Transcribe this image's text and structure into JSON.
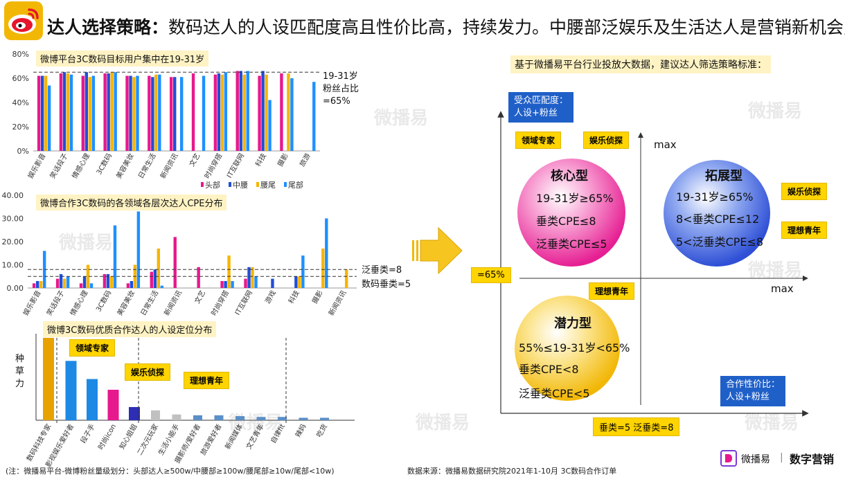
{
  "header": {
    "title_strong": "达人选择策略：",
    "title_rest": "数码达人的人设匹配度高且性价比高，持续发力。中腰部泛娱乐及生活达人是营销新机会点。"
  },
  "watermark": "微播易",
  "right_panel": {
    "title": "基于微播易平台行业投放大数据，建议达人筛选策略标准：",
    "y_axis_box": "受众匹配度：\n人设+粉丝",
    "x_axis_box": "合作性价比：\n人设+粉丝",
    "y_max": "max",
    "x_max": "max",
    "y_threshold_tag": "=65%",
    "x_threshold_tag": "垂类=5  泛垂类=8",
    "quadrants": [
      {
        "name": "核心型",
        "lines": [
          "19-31岁≥65%",
          "垂类CPE≤8",
          "泛垂类CPE≤5"
        ],
        "color": "#ee3aa4"
      },
      {
        "name": "拓展型",
        "lines": [
          "19-31岁≥65%",
          "8<垂类CPE≤12",
          "5<泛垂类CPE≤8"
        ],
        "color": "#4a6fe0"
      },
      {
        "name": "潜力型",
        "lines": [
          "55%≤19-31岁<65%",
          "垂类CPE<8",
          "泛垂类CPE<5"
        ],
        "color": "#f7c520"
      }
    ],
    "tags": {
      "domain_expert": "领域专家",
      "ent_detective_left": "娱乐侦探",
      "ent_detective_right": "娱乐侦探",
      "ideal_youth_right": "理想青年",
      "ideal_youth_bottom": "理想青年"
    }
  },
  "chart_data": [
    {
      "type": "bar",
      "title": "微博平台3C数码目标用户集中在19-31岁",
      "categories": [
        "娱乐影音",
        "笑话段子",
        "情感心理",
        "3C数码",
        "美容美妆",
        "日常生活",
        "新闻资讯",
        "文艺",
        "时尚穿搭",
        "IT互联网",
        "科技",
        "摄影",
        "旅游"
      ],
      "ylim": [
        0,
        80
      ],
      "yticks": [
        "0%",
        "20%",
        "40%",
        "60%",
        "80%"
      ],
      "series": [
        {
          "name": "头部",
          "color": "#e6198d",
          "values": [
            62,
            64,
            62,
            64,
            62,
            62,
            61,
            64,
            63,
            66,
            62,
            64,
            null
          ]
        },
        {
          "name": "中腰",
          "color": "#1f4fd8",
          "values": [
            62,
            65,
            65,
            64,
            62,
            61,
            61,
            null,
            64,
            66,
            66,
            null,
            null
          ]
        },
        {
          "name": "腰尾",
          "color": "#f7b500",
          "values": [
            62,
            64,
            61,
            65,
            61,
            63,
            null,
            null,
            63,
            63,
            63,
            64,
            null
          ]
        },
        {
          "name": "尾部",
          "color": "#1e90ff",
          "values": [
            54,
            63,
            62,
            65,
            62,
            63,
            61,
            62,
            65,
            66,
            42,
            60,
            57
          ]
        }
      ],
      "reference_line": 65,
      "reference_label": [
        "19-31岁",
        "粉丝占比",
        "=65%"
      ]
    },
    {
      "type": "bar",
      "title": "微博合作3C数码的各领域各层次达人CPE分布",
      "categories": [
        "娱乐影音",
        "笑话段子",
        "情感心理",
        "3C数码",
        "美容美妆",
        "日常生活",
        "新闻资讯",
        "文艺",
        "时尚穿搭",
        "IT互联网",
        "游戏",
        "科技",
        "摄影",
        "新闻资讯"
      ],
      "ylim": [
        0,
        40
      ],
      "yticks": [
        "0.00",
        "10.00",
        "20.00",
        "30.00",
        "40.00"
      ],
      "series": [
        {
          "name": "头部",
          "color": "#e6198d",
          "values": [
            2,
            4,
            2,
            6,
            2,
            7,
            22,
            9,
            3,
            4,
            null,
            null,
            null,
            null
          ]
        },
        {
          "name": "中腰",
          "color": "#1f4fd8",
          "values": [
            3,
            6,
            5,
            6,
            3,
            8,
            null,
            null,
            3,
            9,
            4,
            5,
            null,
            null
          ]
        },
        {
          "name": "腰尾",
          "color": "#f7b500",
          "values": [
            3,
            4,
            10,
            5,
            10,
            17,
            null,
            null,
            14,
            9,
            null,
            5,
            17,
            8
          ]
        },
        {
          "name": "尾部",
          "color": "#1e90ff",
          "values": [
            16,
            5,
            2,
            27,
            33,
            1,
            null,
            null,
            3,
            5,
            null,
            14,
            30,
            null
          ]
        }
      ],
      "reference_lines": [
        {
          "value": 8,
          "label": "泛垂类=8"
        },
        {
          "value": 5,
          "label": "数码垂类=5"
        }
      ]
    },
    {
      "type": "bar",
      "title": "微博3C数码优质合作达人的人设定位分布",
      "ylabel": "种草力",
      "categories": [
        "数码科技专家",
        "影视娱乐爱好者",
        "段子手",
        "时尚icon",
        "知心姐姐",
        "二次元玩家",
        "生活小能手",
        "摄影师/爱好者",
        "旅游爱好者",
        "新闻媒体",
        "文艺青年",
        "自律fit",
        "辣妈",
        "吃货"
      ],
      "values": [
        100,
        72,
        50,
        37,
        16,
        12,
        7,
        6,
        6,
        5,
        4,
        4,
        3,
        3
      ],
      "colors": [
        "#e8a200",
        "#1e88e5",
        "#1e88e5",
        "#e6198d",
        "#2d2db5",
        "#c0c0c0",
        "#c0c0c0",
        "#5b8fc7",
        "#5b8fc7",
        "#5b8fc7",
        "#5b8fc7",
        "#5b8fc7",
        "#5b8fc7",
        "#5b8fc7"
      ],
      "tags": [
        "领域专家",
        "娱乐侦探",
        "理想青年"
      ]
    }
  ],
  "footer": {
    "note": "(注：微播易平台-微博粉丝量级划分：头部达人≥500w/中腰部≥100w/腰尾部≥10w/尾部<10w)",
    "source": "数据来源：微播易数据研究院2021年1-10月 3C数码合作订单",
    "brand1": "微播易",
    "separator": "|",
    "brand2": "数字营销"
  }
}
